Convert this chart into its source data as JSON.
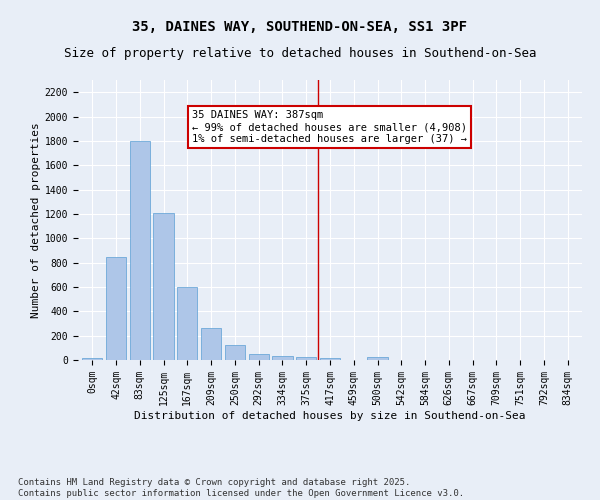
{
  "title": "35, DAINES WAY, SOUTHEND-ON-SEA, SS1 3PF",
  "subtitle": "Size of property relative to detached houses in Southend-on-Sea",
  "xlabel": "Distribution of detached houses by size in Southend-on-Sea",
  "ylabel": "Number of detached properties",
  "footer_line1": "Contains HM Land Registry data © Crown copyright and database right 2025.",
  "footer_line2": "Contains public sector information licensed under the Open Government Licence v3.0.",
  "bar_labels": [
    "0sqm",
    "42sqm",
    "83sqm",
    "125sqm",
    "167sqm",
    "209sqm",
    "250sqm",
    "292sqm",
    "334sqm",
    "375sqm",
    "417sqm",
    "459sqm",
    "500sqm",
    "542sqm",
    "584sqm",
    "626sqm",
    "667sqm",
    "709sqm",
    "751sqm",
    "792sqm",
    "834sqm"
  ],
  "bar_values": [
    20,
    850,
    1800,
    1210,
    600,
    260,
    125,
    50,
    35,
    25,
    20,
    0,
    25,
    0,
    0,
    0,
    0,
    0,
    0,
    0,
    0
  ],
  "bar_color": "#aec6e8",
  "bar_edge_color": "#5a9fd4",
  "ylim": [
    0,
    2300
  ],
  "yticks": [
    0,
    200,
    400,
    600,
    800,
    1000,
    1200,
    1400,
    1600,
    1800,
    2000,
    2200
  ],
  "vline_x": 9.5,
  "annotation_line1": "35 DAINES WAY: 387sqm",
  "annotation_line2": "← 99% of detached houses are smaller (4,908)",
  "annotation_line3": "1% of semi-detached houses are larger (37) →",
  "annotation_box_color": "#ffffff",
  "annotation_border_color": "#cc0000",
  "bg_color": "#e8eef7",
  "plot_bg_color": "#e8eef7",
  "grid_color": "#ffffff",
  "vline_color": "#cc0000",
  "title_fontsize": 10,
  "subtitle_fontsize": 9,
  "axis_label_fontsize": 8,
  "tick_fontsize": 7,
  "annotation_fontsize": 7.5,
  "footer_fontsize": 6.5
}
